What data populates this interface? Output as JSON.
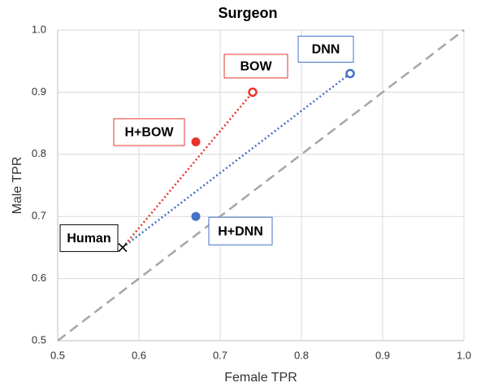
{
  "chart_data": {
    "type": "scatter",
    "title": "Surgeon",
    "xlabel": "Female TPR",
    "ylabel": "Male TPR",
    "xlim": [
      0.5,
      1.0
    ],
    "ylim": [
      0.5,
      1.0
    ],
    "xticks": [
      0.5,
      0.6,
      0.7,
      0.8,
      0.9,
      {
        "value": 1.0,
        "label": "1.0"
      }
    ],
    "yticks": [
      0.5,
      0.6,
      0.7,
      0.8,
      0.9,
      {
        "value": 1.0,
        "label": "1.0"
      }
    ],
    "grid": true,
    "reference_line": true,
    "series": [
      {
        "name": "Human",
        "color": "#000000",
        "marker": "x",
        "x": [
          0.58
        ],
        "values": [
          0.65
        ]
      },
      {
        "name": "BOW",
        "color": "#e8352c",
        "marker": "hollow",
        "x": [
          0.74
        ],
        "values": [
          0.9
        ]
      },
      {
        "name": "H+BOW",
        "color": "#e8352c",
        "marker": "filled",
        "x": [
          0.67
        ],
        "values": [
          0.82
        ]
      },
      {
        "name": "DNN",
        "color": "#4472c4",
        "marker": "hollow",
        "x": [
          0.86
        ],
        "values": [
          0.93
        ]
      },
      {
        "name": "H+DNN",
        "color": "#4472c4",
        "marker": "filled",
        "x": [
          0.67
        ],
        "values": [
          0.7
        ]
      }
    ],
    "links": [
      {
        "from": 0,
        "to": 1,
        "color": "#e8352c"
      },
      {
        "from": 0,
        "to": 3,
        "color": "#4472c4"
      }
    ]
  }
}
